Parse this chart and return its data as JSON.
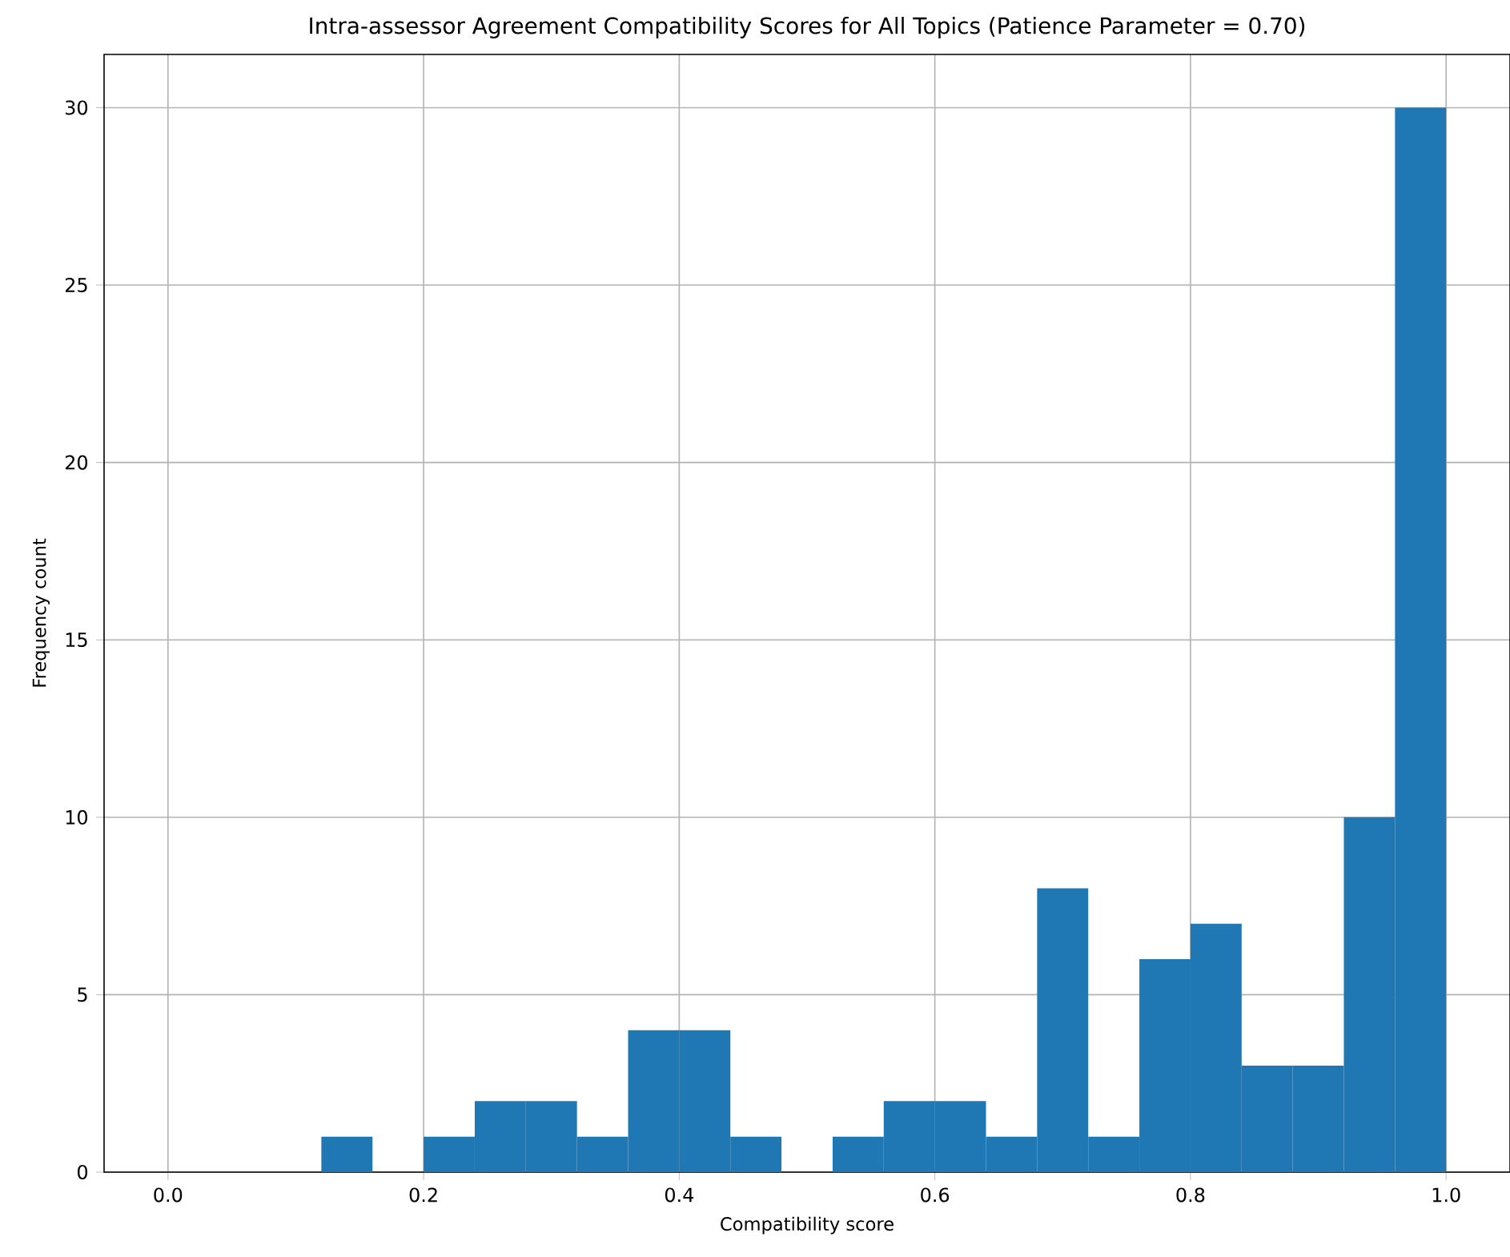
{
  "chart_data": {
    "type": "histogram",
    "title": "Intra-assessor Agreement Compatibility Scores for All Topics (Patience Parameter = 0.70)",
    "xlabel": "Compatibility score",
    "ylabel": "Frequency count",
    "bins": [
      0,
      0.04,
      0.08,
      0.12,
      0.16,
      0.2,
      0.24,
      0.28,
      0.32,
      0.36,
      0.4,
      0.44,
      0.48,
      0.52,
      0.56,
      0.6,
      0.64,
      0.68,
      0.72,
      0.76,
      0.8,
      0.84,
      0.88,
      0.92,
      0.96,
      1.0
    ],
    "values": [
      0,
      0,
      0,
      1,
      0,
      1,
      2,
      2,
      1,
      4,
      4,
      1,
      0,
      1,
      2,
      2,
      1,
      8,
      1,
      6,
      7,
      3,
      3,
      10,
      30
    ],
    "color": "#1f77b4",
    "xlim": [
      -0.05,
      1.05
    ],
    "ylim": [
      0,
      31.5
    ],
    "xticks": [
      {
        "value": 0,
        "label": "0.0"
      },
      0.2,
      0.4,
      0.6,
      0.8,
      {
        "value": 1,
        "label": "1.0"
      }
    ],
    "yticks": [
      0,
      5,
      10,
      15,
      20,
      25,
      30
    ],
    "grid": true
  }
}
